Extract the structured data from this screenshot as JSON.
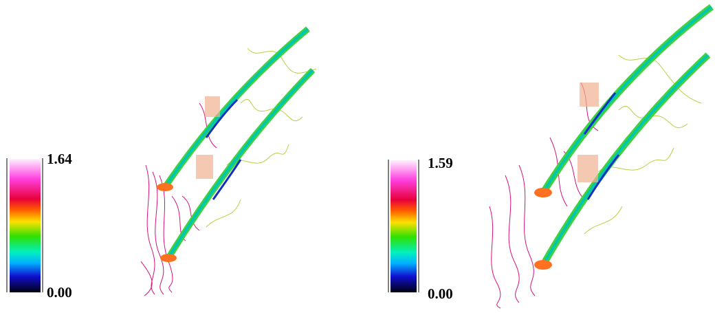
{
  "panels": [
    {
      "colorbar": {
        "max_label": "1.64",
        "min_label": "0.00"
      }
    },
    {
      "colorbar": {
        "max_label": "1.59",
        "min_label": "0.00"
      }
    }
  ]
}
